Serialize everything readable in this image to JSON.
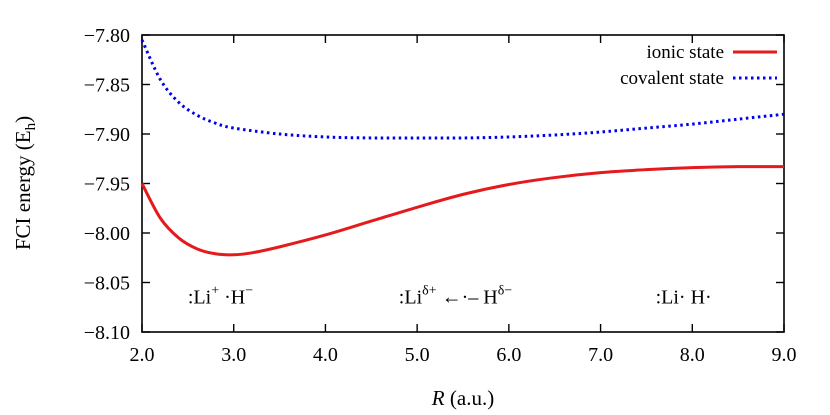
{
  "chart_data": {
    "type": "line",
    "xlabel_italic": "R",
    "xlabel_rest": " (a.u.)",
    "ylabel_main": "FCI energy (E",
    "ylabel_sub": "h",
    "ylabel_close": ")",
    "xlim": [
      2.0,
      9.0
    ],
    "ylim": [
      -8.1,
      -7.8
    ],
    "xticks": [
      2.0,
      3.0,
      4.0,
      5.0,
      6.0,
      7.0,
      8.0,
      9.0
    ],
    "xtick_labels": [
      "2.0",
      "3.0",
      "4.0",
      "5.0",
      "6.0",
      "7.0",
      "8.0",
      "9.0"
    ],
    "yticks": [
      -7.8,
      -7.85,
      -7.9,
      -7.95,
      -8.0,
      -8.05,
      -8.1
    ],
    "ytick_labels": [
      "−7.80",
      "−7.85",
      "−7.90",
      "−7.95",
      "−8.00",
      "−8.05",
      "−8.10"
    ],
    "grid": false,
    "legend_position": "top-right",
    "series": [
      {
        "name": "ionic state",
        "color": "#e41a1c",
        "style": "solid",
        "x": [
          2.0,
          2.2,
          2.4,
          2.6,
          2.8,
          3.0,
          3.2,
          3.5,
          4.0,
          4.5,
          5.0,
          5.5,
          6.0,
          6.5,
          7.0,
          7.5,
          8.0,
          8.5,
          9.0
        ],
        "y": [
          -7.95,
          -7.985,
          -8.005,
          -8.016,
          -8.021,
          -8.022,
          -8.02,
          -8.014,
          -8.002,
          -7.988,
          -7.974,
          -7.961,
          -7.951,
          -7.944,
          -7.939,
          -7.936,
          -7.934,
          -7.933,
          -7.933
        ]
      },
      {
        "name": "covalent state",
        "color": "#0000ee",
        "style": "dotted",
        "x": [
          2.0,
          2.2,
          2.4,
          2.6,
          2.8,
          3.0,
          3.5,
          4.0,
          4.5,
          5.0,
          5.5,
          6.0,
          6.5,
          7.0,
          7.5,
          8.0,
          8.5,
          9.0
        ],
        "y": [
          -7.805,
          -7.845,
          -7.868,
          -7.881,
          -7.889,
          -7.894,
          -7.9,
          -7.903,
          -7.904,
          -7.904,
          -7.904,
          -7.903,
          -7.901,
          -7.898,
          -7.894,
          -7.89,
          -7.885,
          -7.88
        ]
      }
    ],
    "annotations": [
      {
        "id": "ionic-pair",
        "x": 2.5,
        "y": -8.065,
        "parts": [
          ":Li",
          "+",
          "  ·H",
          "−"
        ]
      },
      {
        "id": "partial-pair",
        "x": 4.8,
        "y": -8.065,
        "parts": [
          ":Li",
          "δ+",
          " ←·–  H",
          "δ−"
        ]
      },
      {
        "id": "neutral-pair",
        "x": 7.6,
        "y": -8.065,
        "parts": [
          ":Li·    H·"
        ]
      }
    ]
  }
}
